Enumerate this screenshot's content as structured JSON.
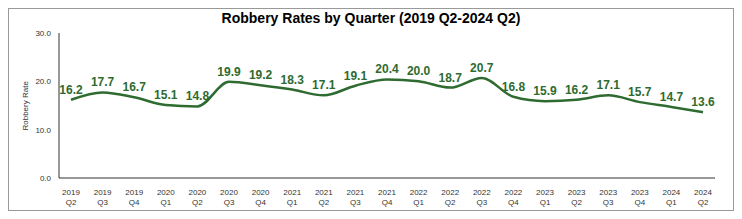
{
  "chart_data": {
    "type": "line",
    "title": "Robbery Rates by Quarter (2019 Q2-2024 Q2)",
    "y_label": "Robbery Rate",
    "categories": [
      "2019 Q2",
      "2019 Q3",
      "2019 Q4",
      "2020 Q1",
      "2020 Q2",
      "2020 Q3",
      "2020 Q4",
      "2021 Q1",
      "2021 Q2",
      "2021 Q3",
      "2021 Q4",
      "2022 Q1",
      "2022 Q2",
      "2022 Q3",
      "2022 Q4",
      "2023 Q1",
      "2023 Q2",
      "2023 Q3",
      "2023 Q4",
      "2024 Q1",
      "2024 Q2"
    ],
    "values": [
      16.2,
      17.7,
      16.7,
      15.1,
      14.8,
      19.9,
      19.2,
      18.3,
      17.1,
      19.1,
      20.4,
      20.0,
      18.7,
      20.7,
      16.8,
      15.9,
      16.2,
      17.1,
      15.7,
      14.7,
      13.6
    ],
    "value_labels": [
      "16.2",
      "17.7",
      "16.7",
      "15.1",
      "14.8",
      "19.9",
      "19.2",
      "18.3",
      "17.1",
      "19.1",
      "20.4",
      "20.0",
      "18.7",
      "20.7",
      "16.8",
      "15.9",
      "16.2",
      "17.1",
      "15.7",
      "14.7",
      "13.6"
    ],
    "color": "#2e6b30",
    "ylim": [
      0,
      30
    ],
    "yticks": [
      {
        "value": 0,
        "label": "0.0"
      },
      {
        "value": 10,
        "label": "10.0"
      },
      {
        "value": 20,
        "label": "20.0"
      },
      {
        "value": 30,
        "label": "30.0"
      }
    ],
    "data_labels": true,
    "grid": false
  }
}
